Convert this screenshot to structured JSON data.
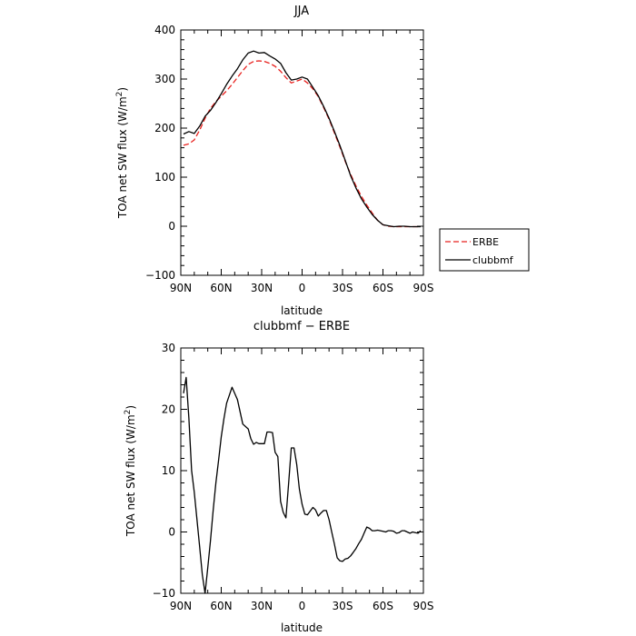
{
  "chart_data": [
    {
      "type": "line",
      "title": "JJA",
      "xlabel": "latitude",
      "ylabel": "TOA net SW flux (W/m",
      "ylabel_sup": "2",
      "ylabel_end": ")",
      "xlim": [
        90,
        -90
      ],
      "ylim": [
        -100,
        400
      ],
      "xticks": [
        90,
        60,
        30,
        0,
        -30,
        -60,
        -90
      ],
      "xtick_labels": [
        "90N",
        "60N",
        "30N",
        "0",
        "30S",
        "60S",
        "90S"
      ],
      "yticks": [
        -100,
        0,
        100,
        200,
        300,
        400
      ],
      "ytick_labels": [
        "−100",
        "0",
        "100",
        "200",
        "300",
        "400"
      ],
      "legend_position": "outside-right",
      "series": [
        {
          "name": "ERBE",
          "color": "#e8221f",
          "dash": "dashed",
          "x": [
            88,
            84,
            80,
            76,
            72,
            68,
            64,
            60,
            56,
            52,
            48,
            44,
            40,
            36,
            32,
            28,
            24,
            20,
            16,
            12,
            8,
            4,
            0,
            -4,
            -8,
            -12,
            -16,
            -20,
            -24,
            -28,
            -32,
            -36,
            -40,
            -44,
            -48,
            -52,
            -56,
            -60,
            -64,
            -68,
            -72,
            -76,
            -80,
            -84,
            -88
          ],
          "y": [
            165,
            168,
            176,
            196,
            220,
            240,
            254,
            265,
            276,
            289,
            303,
            317,
            330,
            336,
            337,
            336,
            332,
            326,
            316,
            303,
            292,
            296,
            300,
            292,
            280,
            264,
            242,
            218,
            190,
            162,
            132,
            106,
            82,
            61,
            43,
            27,
            12,
            3,
            0,
            -1,
            -1,
            -1,
            -1,
            -1,
            -1
          ]
        },
        {
          "name": "clubbmf",
          "color": "#000000",
          "dash": "solid",
          "x": [
            88,
            84,
            80,
            76,
            72,
            68,
            64,
            60,
            56,
            52,
            48,
            44,
            40,
            36,
            32,
            28,
            24,
            20,
            16,
            12,
            8,
            4,
            0,
            -4,
            -8,
            -12,
            -16,
            -20,
            -24,
            -28,
            -32,
            -36,
            -40,
            -44,
            -48,
            -52,
            -56,
            -60,
            -64,
            -68,
            -72,
            -76,
            -80,
            -84,
            -88
          ],
          "y": [
            188,
            193,
            189,
            204,
            224,
            236,
            252,
            270,
            289,
            306,
            321,
            339,
            353,
            357,
            353,
            354,
            347,
            341,
            332,
            313,
            298,
            300,
            304,
            300,
            283,
            266,
            244,
            220,
            193,
            165,
            134,
            103,
            78,
            56,
            39,
            24,
            12,
            3,
            1,
            -1,
            0,
            0,
            -1,
            -1,
            -1
          ]
        }
      ]
    },
    {
      "type": "line",
      "title": "clubbmf − ERBE",
      "xlabel": "latitude",
      "ylabel": "TOA net SW flux (W/m",
      "ylabel_sup": "2",
      "ylabel_end": ")",
      "xlim": [
        90,
        -90
      ],
      "ylim": [
        -10,
        30
      ],
      "xticks": [
        90,
        60,
        30,
        0,
        -30,
        -60,
        -90
      ],
      "xtick_labels": [
        "90N",
        "60N",
        "30N",
        "0",
        "30S",
        "60S",
        "90S"
      ],
      "yticks": [
        -10,
        0,
        10,
        20,
        30
      ],
      "ytick_labels": [
        "−10",
        "0",
        "10",
        "20",
        "30"
      ],
      "series": [
        {
          "name": "",
          "color": "#000000",
          "dash": "solid",
          "x": [
            88,
            86,
            84,
            82,
            80,
            78,
            76,
            74,
            72,
            70,
            68,
            66,
            64,
            62,
            60,
            58,
            56,
            52,
            48,
            44,
            40,
            38,
            36,
            34,
            32,
            30,
            28,
            26,
            24,
            22,
            20,
            18,
            16,
            14,
            12,
            10,
            8,
            6,
            4,
            2,
            0,
            -2,
            -4,
            -6,
            -8,
            -10,
            -12,
            -14,
            -16,
            -18,
            -20,
            -22,
            -24,
            -26,
            -28,
            -30,
            -32,
            -34,
            -36,
            -38,
            -40,
            -42,
            -44,
            -46,
            -48,
            -50,
            -52,
            -54,
            -56,
            -58,
            -60,
            -62,
            -64,
            -66,
            -68,
            -70,
            -72,
            -74,
            -76,
            -78,
            -80,
            -82,
            -84,
            -86,
            -88
          ],
          "y": [
            22.6,
            25.2,
            18.5,
            10.0,
            6.5,
            2.0,
            -2.5,
            -7.0,
            -10.0,
            -5.8,
            -1.5,
            3.5,
            8.0,
            11.6,
            15.5,
            18.5,
            21.0,
            23.6,
            21.6,
            17.6,
            16.8,
            15.2,
            14.3,
            14.6,
            14.4,
            14.4,
            14.4,
            16.3,
            16.3,
            16.2,
            13.0,
            12.3,
            5.0,
            3.2,
            2.3,
            8.0,
            13.7,
            13.7,
            11.0,
            7.0,
            4.5,
            2.9,
            2.8,
            3.4,
            4.0,
            3.6,
            2.6,
            3.1,
            3.5,
            3.5,
            2.0,
            0.0,
            -2.0,
            -4.2,
            -4.7,
            -4.8,
            -4.4,
            -4.3,
            -3.9,
            -3.3,
            -2.7,
            -1.9,
            -1.2,
            -0.2,
            0.8,
            0.6,
            0.2,
            0.2,
            0.3,
            0.2,
            0.1,
            0.0,
            0.2,
            0.2,
            0.1,
            -0.2,
            -0.1,
            0.2,
            0.2,
            0.0,
            -0.2,
            0.0,
            -0.1,
            -0.2,
            0.2
          ]
        }
      ]
    }
  ]
}
